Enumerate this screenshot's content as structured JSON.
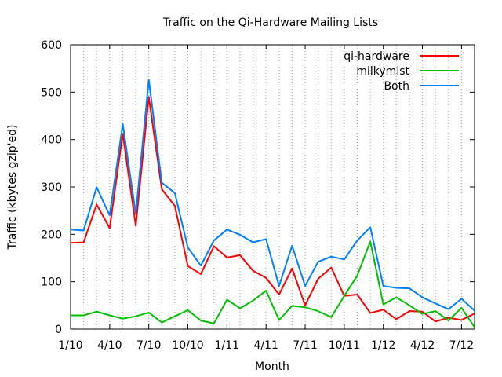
{
  "chart_data": {
    "type": "line",
    "title": "Traffic on the Qi-Hardware Mailing Lists",
    "xlabel": "Month",
    "ylabel": "Traffic (kbytes gzip'ed)",
    "ylim": [
      0,
      600
    ],
    "yticks": [
      0,
      100,
      200,
      300,
      400,
      500,
      600
    ],
    "x_tick_labels": [
      "1/10",
      "4/10",
      "7/10",
      "10/10",
      "1/11",
      "4/11",
      "7/11",
      "10/11",
      "1/12",
      "4/12",
      "7/12"
    ],
    "x_tick_months": [
      0,
      3,
      6,
      9,
      12,
      15,
      18,
      21,
      24,
      27,
      30
    ],
    "x": [
      "2010-01",
      "2010-02",
      "2010-03",
      "2010-04",
      "2010-05",
      "2010-06",
      "2010-07",
      "2010-08",
      "2010-09",
      "2010-10",
      "2010-11",
      "2010-12",
      "2011-01",
      "2011-02",
      "2011-03",
      "2011-04",
      "2011-05",
      "2011-06",
      "2011-07",
      "2011-08",
      "2011-09",
      "2011-10",
      "2011-11",
      "2011-12",
      "2012-01",
      "2012-02",
      "2012-03",
      "2012-04",
      "2012-05",
      "2012-06",
      "2012-07",
      "2012-08"
    ],
    "grid": "vertical dotted lines at each month",
    "legend": "top-right",
    "series": [
      {
        "name": "qi-hardware",
        "color": "#ff0000",
        "values": [
          182,
          183,
          263,
          213,
          412,
          218,
          490,
          295,
          260,
          133,
          116,
          175,
          151,
          156,
          123,
          108,
          73,
          128,
          50,
          106,
          130,
          70,
          73,
          34,
          41,
          21,
          38,
          37,
          16,
          24,
          19,
          33
        ]
      },
      {
        "name": "milkymist",
        "color": "#00c000",
        "values": [
          29,
          29,
          37,
          29,
          22,
          27,
          35,
          14,
          27,
          40,
          18,
          12,
          62,
          44,
          60,
          81,
          19,
          49,
          46,
          38,
          25,
          70,
          113,
          185,
          52,
          67,
          50,
          32,
          38,
          18,
          45,
          4
        ]
      },
      {
        "name": "Both",
        "color": "#0080ff",
        "values": [
          210,
          208,
          299,
          240,
          433,
          243,
          526,
          309,
          287,
          172,
          134,
          187,
          210,
          199,
          183,
          190,
          91,
          176,
          91,
          142,
          153,
          147,
          187,
          215,
          91,
          87,
          86,
          67,
          54,
          42,
          64,
          39
        ]
      }
    ]
  }
}
